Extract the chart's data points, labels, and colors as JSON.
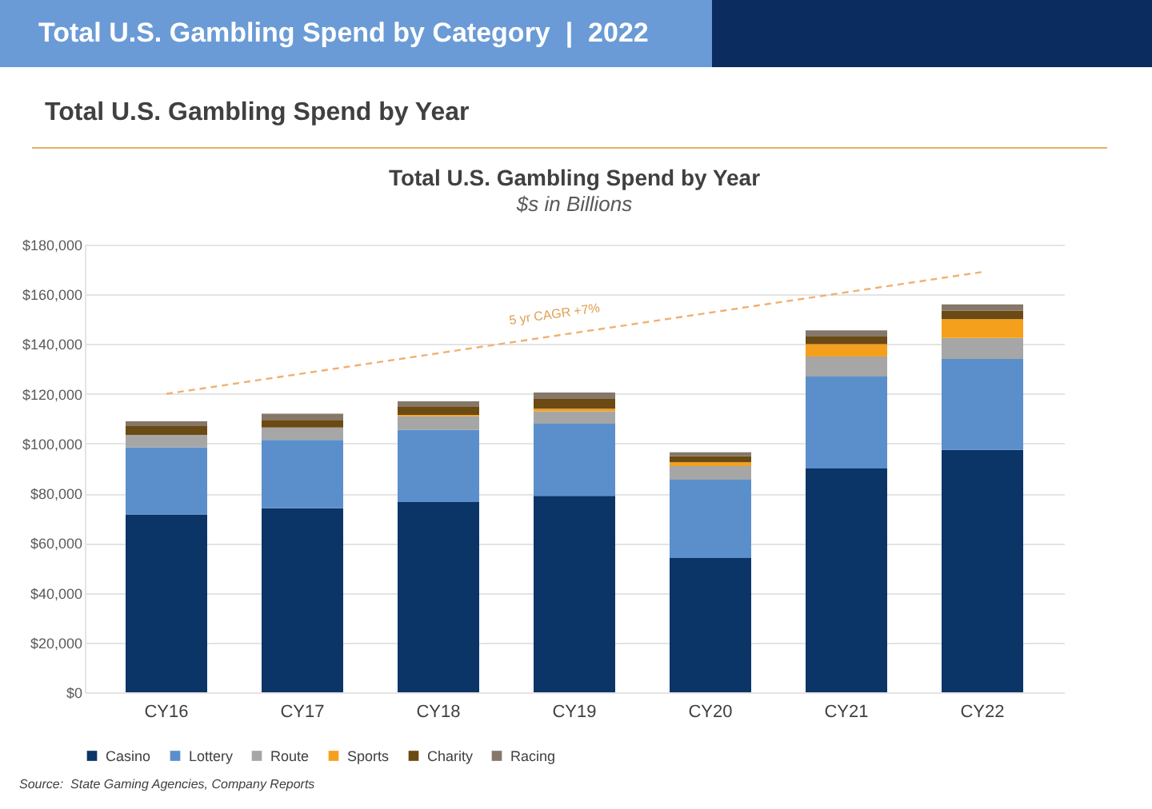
{
  "chart_data": {
    "type": "bar",
    "stacked": true,
    "title": "Total U.S. Gambling Spend by Year",
    "subtitle": "$s in Billions",
    "categories": [
      "CY16",
      "CY17",
      "CY18",
      "CY19",
      "CY20",
      "CY21",
      "CY22"
    ],
    "series": [
      {
        "name": "Casino",
        "color": "#0a3566",
        "values": [
          71500,
          74000,
          76500,
          79000,
          54000,
          90000,
          97500
        ]
      },
      {
        "name": "Lottery",
        "color": "#5b8fcc",
        "values": [
          27000,
          27500,
          29000,
          29000,
          31500,
          37000,
          36500
        ]
      },
      {
        "name": "Route",
        "color": "#a6a6a6",
        "values": [
          5000,
          5000,
          5500,
          5000,
          5500,
          8000,
          8500
        ]
      },
      {
        "name": "Sports",
        "color": "#f5a01c",
        "values": [
          0,
          0,
          500,
          1000,
          1500,
          5000,
          7500
        ]
      },
      {
        "name": "Charity",
        "color": "#6b4a14",
        "values": [
          3500,
          3000,
          3500,
          4000,
          2500,
          3000,
          3500
        ]
      },
      {
        "name": "Racing",
        "color": "#857869",
        "values": [
          2000,
          2500,
          2000,
          2500,
          1500,
          2500,
          2500
        ]
      },
      {
        "type": "line",
        "color": "#f0b070",
        "line_style": "dashed",
        "x": [
          "CY16",
          "CY22"
        ],
        "values": [
          120000,
          169000
        ]
      }
    ],
    "ylim": [
      0,
      180000
    ],
    "yticks": [
      {
        "value": 0,
        "label": "$0"
      },
      {
        "value": 20000,
        "label": "$20,000"
      },
      {
        "value": 40000,
        "label": "$40,000"
      },
      {
        "value": 60000,
        "label": "$60,000"
      },
      {
        "value": 80000,
        "label": "$80,000"
      },
      {
        "value": 100000,
        "label": "$100,000"
      },
      {
        "value": 120000,
        "label": "$120,000"
      },
      {
        "value": 140000,
        "label": "$140,000"
      },
      {
        "value": 160000,
        "label": "$160,000"
      },
      {
        "value": 180000,
        "label": "$180,000"
      }
    ],
    "grid": "y",
    "legend": "bottom",
    "annotations": [
      "Total U.S. Gambling Spend by Category  |  2022",
      "Total U.S. Gambling Spend by Year",
      "Source:  State Gaming Agencies, Company Reports",
      "5 yr CAGR +7%"
    ]
  }
}
